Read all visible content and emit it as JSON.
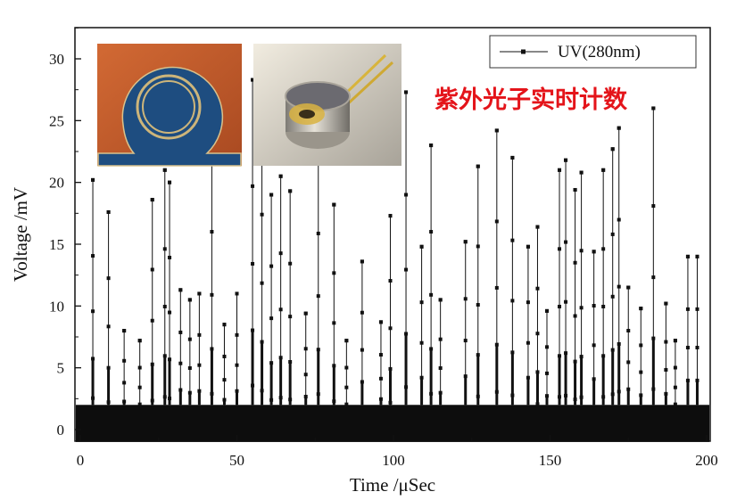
{
  "chart_data": {
    "type": "line",
    "title": "",
    "xlabel": "Time /μSec",
    "ylabel": "Voltage /mV",
    "xlim": [
      0,
      200
    ],
    "ylim": [
      -1,
      32
    ],
    "x_ticks": [
      0,
      50,
      100,
      150,
      200
    ],
    "x_tick_labels": [
      "0",
      "50",
      "100",
      "150",
      "200"
    ],
    "y_ticks": [
      0,
      5,
      10,
      15,
      20,
      25,
      30
    ],
    "y_tick_labels": [
      "0",
      "5",
      "10",
      "15",
      "20",
      "25",
      "30"
    ],
    "grid": false,
    "legend_position": "top-right",
    "baseline_noise_band": [
      -1,
      2
    ],
    "series": [
      {
        "name": "UV(280nm)",
        "color": "#111111",
        "marker": "square",
        "pulses": [
          {
            "x": 4,
            "y": 20.2
          },
          {
            "x": 9,
            "y": 17.6
          },
          {
            "x": 14,
            "y": 8
          },
          {
            "x": 19,
            "y": 7.2
          },
          {
            "x": 23,
            "y": 18.6
          },
          {
            "x": 27,
            "y": 21
          },
          {
            "x": 28.5,
            "y": 20
          },
          {
            "x": 32,
            "y": 11.3
          },
          {
            "x": 35,
            "y": 10.5
          },
          {
            "x": 38,
            "y": 11
          },
          {
            "x": 42,
            "y": 23
          },
          {
            "x": 46,
            "y": 8.5
          },
          {
            "x": 50,
            "y": 11
          },
          {
            "x": 55,
            "y": 28.3
          },
          {
            "x": 58,
            "y": 25
          },
          {
            "x": 61,
            "y": 19
          },
          {
            "x": 64,
            "y": 20.5
          },
          {
            "x": 67,
            "y": 19.3
          },
          {
            "x": 72,
            "y": 9.4
          },
          {
            "x": 76,
            "y": 22.8
          },
          {
            "x": 81,
            "y": 18.2
          },
          {
            "x": 85,
            "y": 7.2
          },
          {
            "x": 90,
            "y": 13.6
          },
          {
            "x": 96,
            "y": 8.7
          },
          {
            "x": 99,
            "y": 17.3
          },
          {
            "x": 104,
            "y": 27.3
          },
          {
            "x": 109,
            "y": 14.8
          },
          {
            "x": 112,
            "y": 23
          },
          {
            "x": 115,
            "y": 10.5
          },
          {
            "x": 123,
            "y": 15.2
          },
          {
            "x": 127,
            "y": 21.3
          },
          {
            "x": 133,
            "y": 24.2
          },
          {
            "x": 138,
            "y": 22
          },
          {
            "x": 143,
            "y": 14.8
          },
          {
            "x": 146,
            "y": 16.4
          },
          {
            "x": 149,
            "y": 9.6
          },
          {
            "x": 153,
            "y": 21
          },
          {
            "x": 155,
            "y": 21.8
          },
          {
            "x": 158,
            "y": 19.4
          },
          {
            "x": 160,
            "y": 20.8
          },
          {
            "x": 164,
            "y": 14.4
          },
          {
            "x": 167,
            "y": 21
          },
          {
            "x": 170,
            "y": 22.7
          },
          {
            "x": 172,
            "y": 24.4
          },
          {
            "x": 175,
            "y": 11.5
          },
          {
            "x": 179,
            "y": 9.8
          },
          {
            "x": 183,
            "y": 26
          },
          {
            "x": 187,
            "y": 10.2
          },
          {
            "x": 190,
            "y": 7.2
          },
          {
            "x": 194,
            "y": 14
          },
          {
            "x": 197,
            "y": 14
          }
        ]
      }
    ],
    "annotations": [
      {
        "text": "紫外光子实时计数",
        "color": "#e4141a"
      }
    ]
  },
  "insets": [
    {
      "name": "detector-chip-photo",
      "description_icon": "ring-detector-photo",
      "colors": [
        "#c25a2a",
        "#1f4f82",
        "#c8b27a"
      ]
    },
    {
      "name": "detector-package-photo",
      "description_icon": "to-can-package-photo",
      "colors": [
        "#e8e2d4",
        "#b9b4aa",
        "#d6b84a"
      ]
    }
  ]
}
